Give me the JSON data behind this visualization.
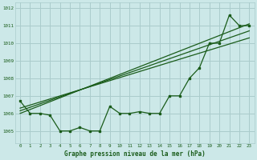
{
  "xlabel": "Graphe pression niveau de la mer (hPa)",
  "ylabel": "",
  "bg_color": "#cce8e8",
  "grid_color": "#aacccc",
  "line_color": "#1a5c1a",
  "text_color": "#1a5c1a",
  "xlim": [
    -0.5,
    23.5
  ],
  "ylim": [
    1004.3,
    1012.3
  ],
  "yticks": [
    1005,
    1006,
    1007,
    1008,
    1009,
    1010,
    1011,
    1012
  ],
  "xticks": [
    0,
    1,
    2,
    3,
    4,
    5,
    6,
    7,
    8,
    9,
    10,
    11,
    12,
    13,
    14,
    15,
    16,
    17,
    18,
    19,
    20,
    21,
    22,
    23
  ],
  "series1": [
    1006.7,
    1006.0,
    1006.0,
    1005.9,
    1005.0,
    1005.0,
    1005.2,
    1005.0,
    1005.0,
    1006.4,
    1006.0,
    1006.0,
    1006.1,
    1006.0,
    1006.0,
    1007.0,
    1007.0,
    1008.0,
    1008.6,
    1010.0,
    1010.0,
    1011.6,
    1011.0,
    1011.0
  ],
  "series2_x": [
    0,
    23
  ],
  "series2_y": [
    1006.0,
    1011.1
  ],
  "series3_x": [
    0,
    23
  ],
  "series3_y": [
    1006.15,
    1010.7
  ],
  "series4_x": [
    0,
    23
  ],
  "series4_y": [
    1006.3,
    1010.3
  ]
}
